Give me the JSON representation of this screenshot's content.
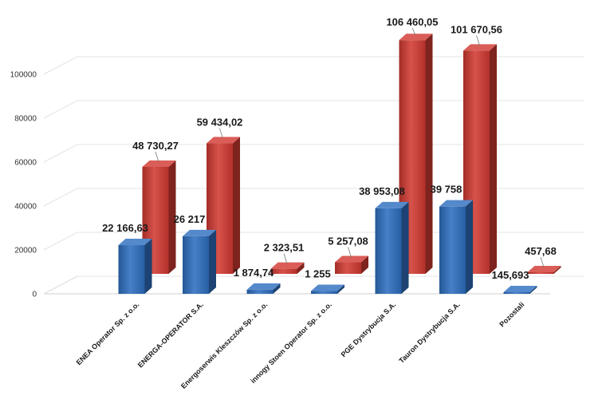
{
  "chart_data": {
    "type": "bar",
    "three_d": true,
    "categories": [
      "ENEA Operator Sp. z o.o.",
      "ENERGA-OPERATOR S.A.",
      "Energoserwis Kleszczów Sp. z o.o.",
      "innogy Stoen Operator Sp. z o.o.",
      "PGE Dystrybucja S.A.",
      "Tauron Dystrybucja S.A.",
      "Pozostali"
    ],
    "series": [
      {
        "color": "#2e6fc0",
        "values": [
          22166.63,
          26217,
          1874.74,
          1255,
          38953.08,
          39758,
          145.693
        ],
        "labels": [
          "22 166,63",
          "26 217",
          "1 874,74",
          "1 255",
          "38 953,08",
          "39 758",
          "145,693"
        ]
      },
      {
        "color": "#d23a32",
        "values": [
          48730.27,
          59434.02,
          2323.51,
          5257.08,
          106460.05,
          101670.56,
          457.68
        ],
        "labels": [
          "48 730,27",
          "59 434,02",
          "2 323,51",
          "5 257,08",
          "106 460,05",
          "101 670,56",
          "457,68"
        ]
      }
    ],
    "y_ticks": [
      "0",
      "20000",
      "40000",
      "60000",
      "80000",
      "100000"
    ],
    "ylim": [
      0,
      110000
    ],
    "grid": true,
    "legend": "none"
  }
}
